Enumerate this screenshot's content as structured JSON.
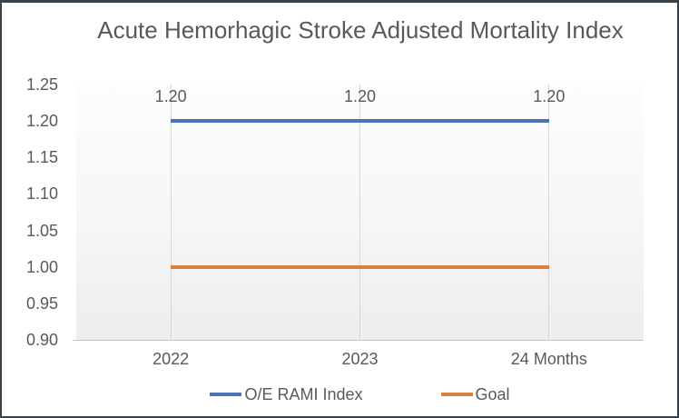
{
  "chart_data": {
    "type": "line",
    "title": "Acute Hemorhagic Stroke Adjusted Mortality Index",
    "categories": [
      "2022",
      "2023",
      "24 Months"
    ],
    "series": [
      {
        "name": "O/E RAMI Index",
        "color": "#4a74b4",
        "values": [
          1.2,
          1.2,
          1.2
        ],
        "labels": [
          "1.20",
          "1.20",
          "1.20"
        ]
      },
      {
        "name": "Goal",
        "color": "#d9823f",
        "values": [
          1.0,
          1.0,
          1.0
        ],
        "labels": null
      }
    ],
    "ylim": [
      0.9,
      1.25
    ],
    "ytick_step": 0.05,
    "yticks": [
      "0.90",
      "0.95",
      "1.00",
      "1.05",
      "1.10",
      "1.15",
      "1.20",
      "1.25"
    ],
    "grid": "vertical-only",
    "legend_position": "bottom",
    "plot_background": "light-gray-gradient",
    "text_color": "#595959",
    "gridline_color": "#d9d9d9",
    "axis_line_color": "#c6c6c6"
  }
}
